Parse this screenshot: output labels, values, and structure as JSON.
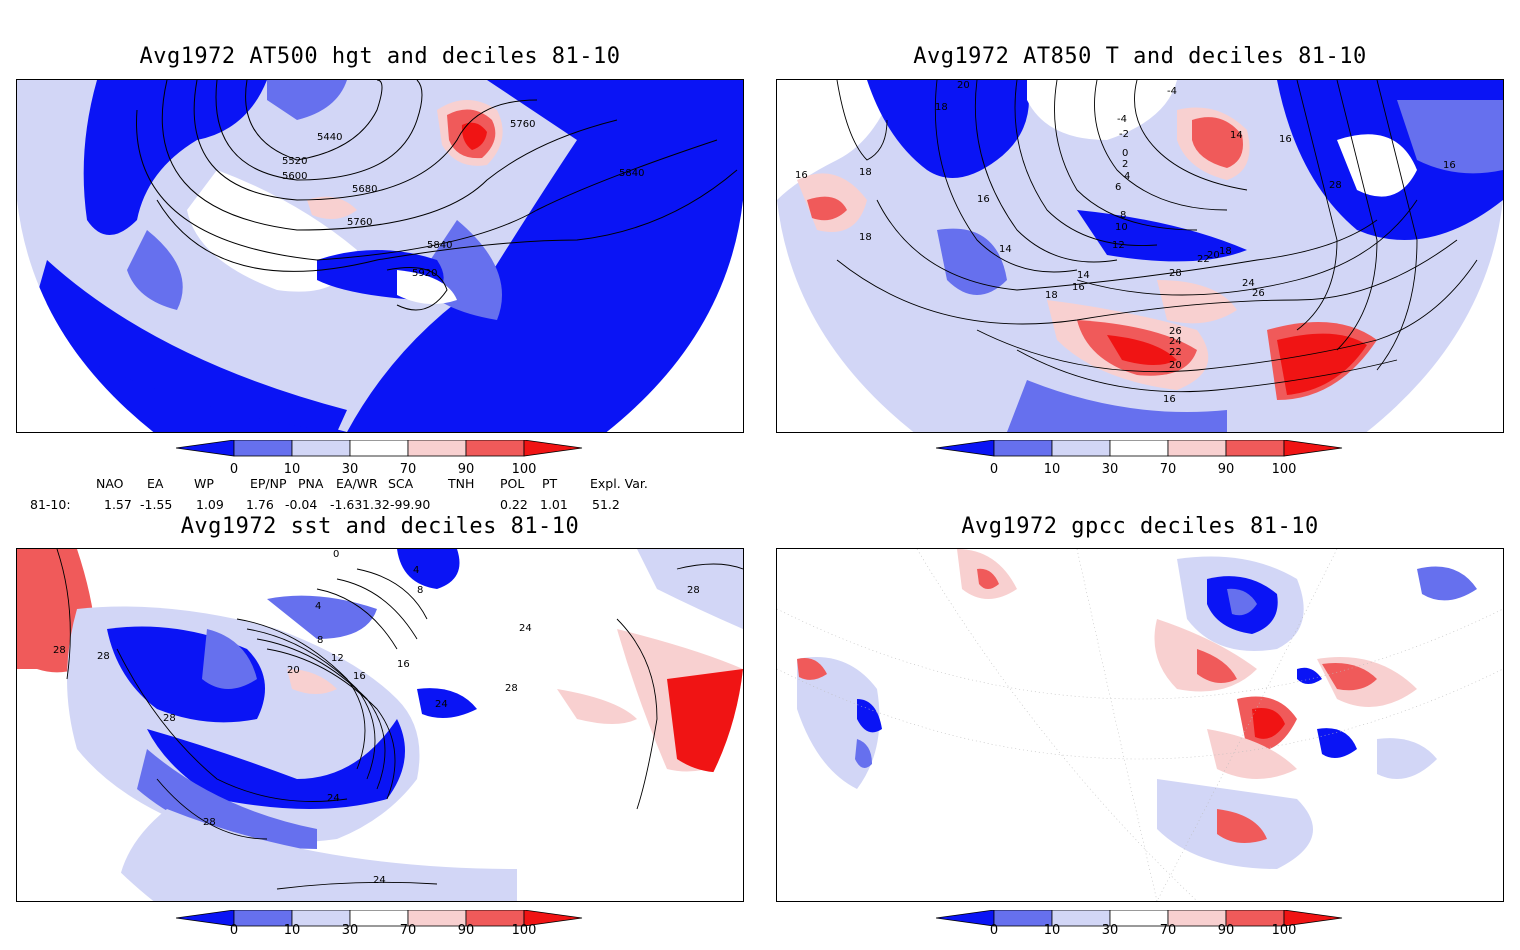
{
  "colors": {
    "decile_0_10": "#0a14f5",
    "decile_10_30": "#6670ee",
    "decile_30_70_low": "#d2d6f6",
    "decile_neutral": "#ffffff",
    "decile_70_90": "#f8d0d0",
    "decile_90_100": "#f05a5a",
    "decile_100_plus": "#f01414",
    "coastline": "#22c2c2",
    "contour": "#000000"
  },
  "colorbar": {
    "ticks": [
      "0",
      "10",
      "30",
      "70",
      "90",
      "100"
    ]
  },
  "panels": [
    {
      "id": "at500",
      "title": "Avg1972 AT500 hgt and deciles 81-10",
      "contour_labels": [
        "5440",
        "5520",
        "5600",
        "5680",
        "5760",
        "5760",
        "5840",
        "5840",
        "5920"
      ]
    },
    {
      "id": "at850",
      "title": "Avg1972 AT850 T and deciles 81-10",
      "contour_labels": [
        "20",
        "18",
        "-4",
        "-4",
        "-2",
        "0",
        "2",
        "4",
        "6",
        "8",
        "10",
        "12",
        "14",
        "14",
        "16",
        "16",
        "16",
        "16",
        "16",
        "18",
        "18",
        "18",
        "18",
        "20",
        "20",
        "22",
        "22",
        "24",
        "24",
        "26",
        "26",
        "28",
        "28",
        "14",
        "16"
      ]
    },
    {
      "id": "sst",
      "title": "Avg1972 sst and deciles 81-10",
      "contour_labels": [
        "0",
        "4",
        "4",
        "8",
        "12",
        "16",
        "16",
        "20",
        "24",
        "24",
        "24",
        "28",
        "28",
        "28",
        "28",
        "28",
        "28",
        "24",
        "8"
      ]
    },
    {
      "id": "gpcc",
      "title": "Avg1972 gpcc deciles 81-10",
      "contour_labels": []
    }
  ],
  "index_table": {
    "headers": [
      "NAO",
      "EA",
      "WP",
      "EP/NP",
      "PNA",
      "EA/WR",
      "SCA",
      "TNH",
      "POL",
      "PT",
      "Expl. Var."
    ],
    "row_label": "81-10:",
    "values": [
      "1.57",
      "-1.55",
      "1.09",
      "1.76",
      "-0.04",
      "-1.63",
      "1.32",
      "-99.90",
      "0.22",
      "1.01",
      "51.2"
    ]
  }
}
